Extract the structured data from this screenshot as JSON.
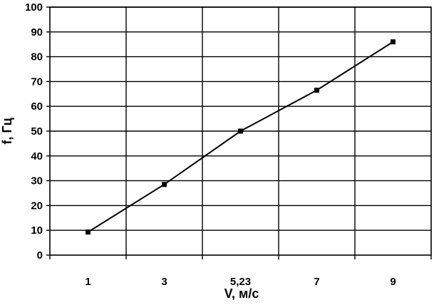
{
  "chart_data": {
    "type": "line",
    "title": "",
    "xlabel": "V, м/с",
    "ylabel": "f, Гц",
    "categories": [
      "1",
      "3",
      "5,23",
      "7",
      "9"
    ],
    "series": [
      {
        "values": [
          9.3,
          28.5,
          50,
          66.5,
          86
        ]
      }
    ],
    "ylim": [
      0,
      100
    ],
    "yticks": [
      "0",
      "10",
      "20",
      "30",
      "40",
      "50",
      "60",
      "70",
      "80",
      "90",
      "100"
    ],
    "grid": true,
    "legend": "none",
    "colors": {
      "line": "#000000",
      "grid": "#000000",
      "background": "#ffffff"
    }
  }
}
